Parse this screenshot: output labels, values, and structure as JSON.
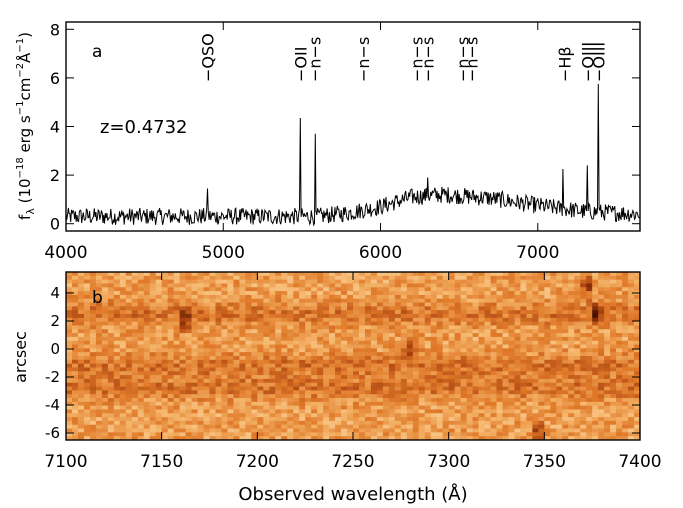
{
  "chart_data": [
    {
      "type": "line",
      "panel_label": "a",
      "xlim": [
        4000,
        7650
      ],
      "ylim": [
        -0.3,
        8.3
      ],
      "xticks": [
        4000,
        5000,
        6000,
        7000
      ],
      "yticks": [
        0,
        2,
        4,
        6,
        8
      ],
      "ylabel_parts": {
        "f": "f",
        "sub": "λ",
        "main": " (10",
        "exp1": "−18",
        "mid": " erg s",
        "exp2": "−1",
        "mid2": "cm",
        "exp3": "−2",
        "mid3": "Å",
        "exp4": "−1",
        "end": ")"
      },
      "annotation": "z=0.4732",
      "line_labels": [
        {
          "x": 4900,
          "text": "−QSO"
        },
        {
          "x": 5490,
          "text": "−OII"
        },
        {
          "x": 5580,
          "text": "−n−s"
        },
        {
          "x": 5890,
          "text": "−n−s"
        },
        {
          "x": 6230,
          "text": "−n−s"
        },
        {
          "x": 6300,
          "text": "−n−s"
        },
        {
          "x": 6520,
          "text": "−n−s"
        },
        {
          "x": 6580,
          "text": "−n−s"
        },
        {
          "x": 7170,
          "text": "−Hβ"
        },
        {
          "x": 7315,
          "text": "−OIII"
        },
        {
          "x": 7385,
          "text": "−OIII"
        }
      ],
      "features": [
        {
          "x": 4900,
          "y": 1.45
        },
        {
          "x": 5490,
          "y": 4.35
        },
        {
          "x": 5585,
          "y": 3.7
        },
        {
          "x": 6300,
          "y": 1.9
        },
        {
          "x": 7160,
          "y": 2.25
        },
        {
          "x": 7315,
          "y": 2.4
        },
        {
          "x": 7385,
          "y": 5.75
        }
      ],
      "continuum": [
        {
          "x": 4000,
          "y": 0.3
        },
        {
          "x": 5600,
          "y": 0.3
        },
        {
          "x": 5800,
          "y": 0.45
        },
        {
          "x": 6000,
          "y": 0.7
        },
        {
          "x": 6200,
          "y": 1.1
        },
        {
          "x": 6400,
          "y": 1.2
        },
        {
          "x": 6700,
          "y": 1.05
        },
        {
          "x": 7000,
          "y": 0.75
        },
        {
          "x": 7300,
          "y": 0.5
        },
        {
          "x": 7650,
          "y": 0.4
        }
      ],
      "color": "#000000"
    },
    {
      "type": "heatmap",
      "panel_label": "b",
      "xlim": [
        7100,
        7400
      ],
      "ylim": [
        -6.5,
        5.5
      ],
      "xticks": [
        7100,
        7150,
        7200,
        7250,
        7300,
        7350,
        7400
      ],
      "yticks": [
        -6,
        -4,
        -2,
        0,
        2,
        4
      ],
      "xlabel": "Observed wavelength (Å)",
      "ylabel": "arcsec",
      "colormap": [
        "#fff4e0",
        "#f5b56a",
        "#e07a2a",
        "#a8400f",
        "#4a1300"
      ],
      "bright_bands_arcsec": [
        2.5,
        -1.2,
        -2.8
      ],
      "hot_spots": [
        {
          "x": 7162,
          "y": 2.0
        },
        {
          "x": 7280,
          "y": 0.0
        },
        {
          "x": 7377,
          "y": 2.5
        },
        {
          "x": 7372,
          "y": 4.5
        },
        {
          "x": 7347,
          "y": -6.0
        }
      ]
    }
  ]
}
